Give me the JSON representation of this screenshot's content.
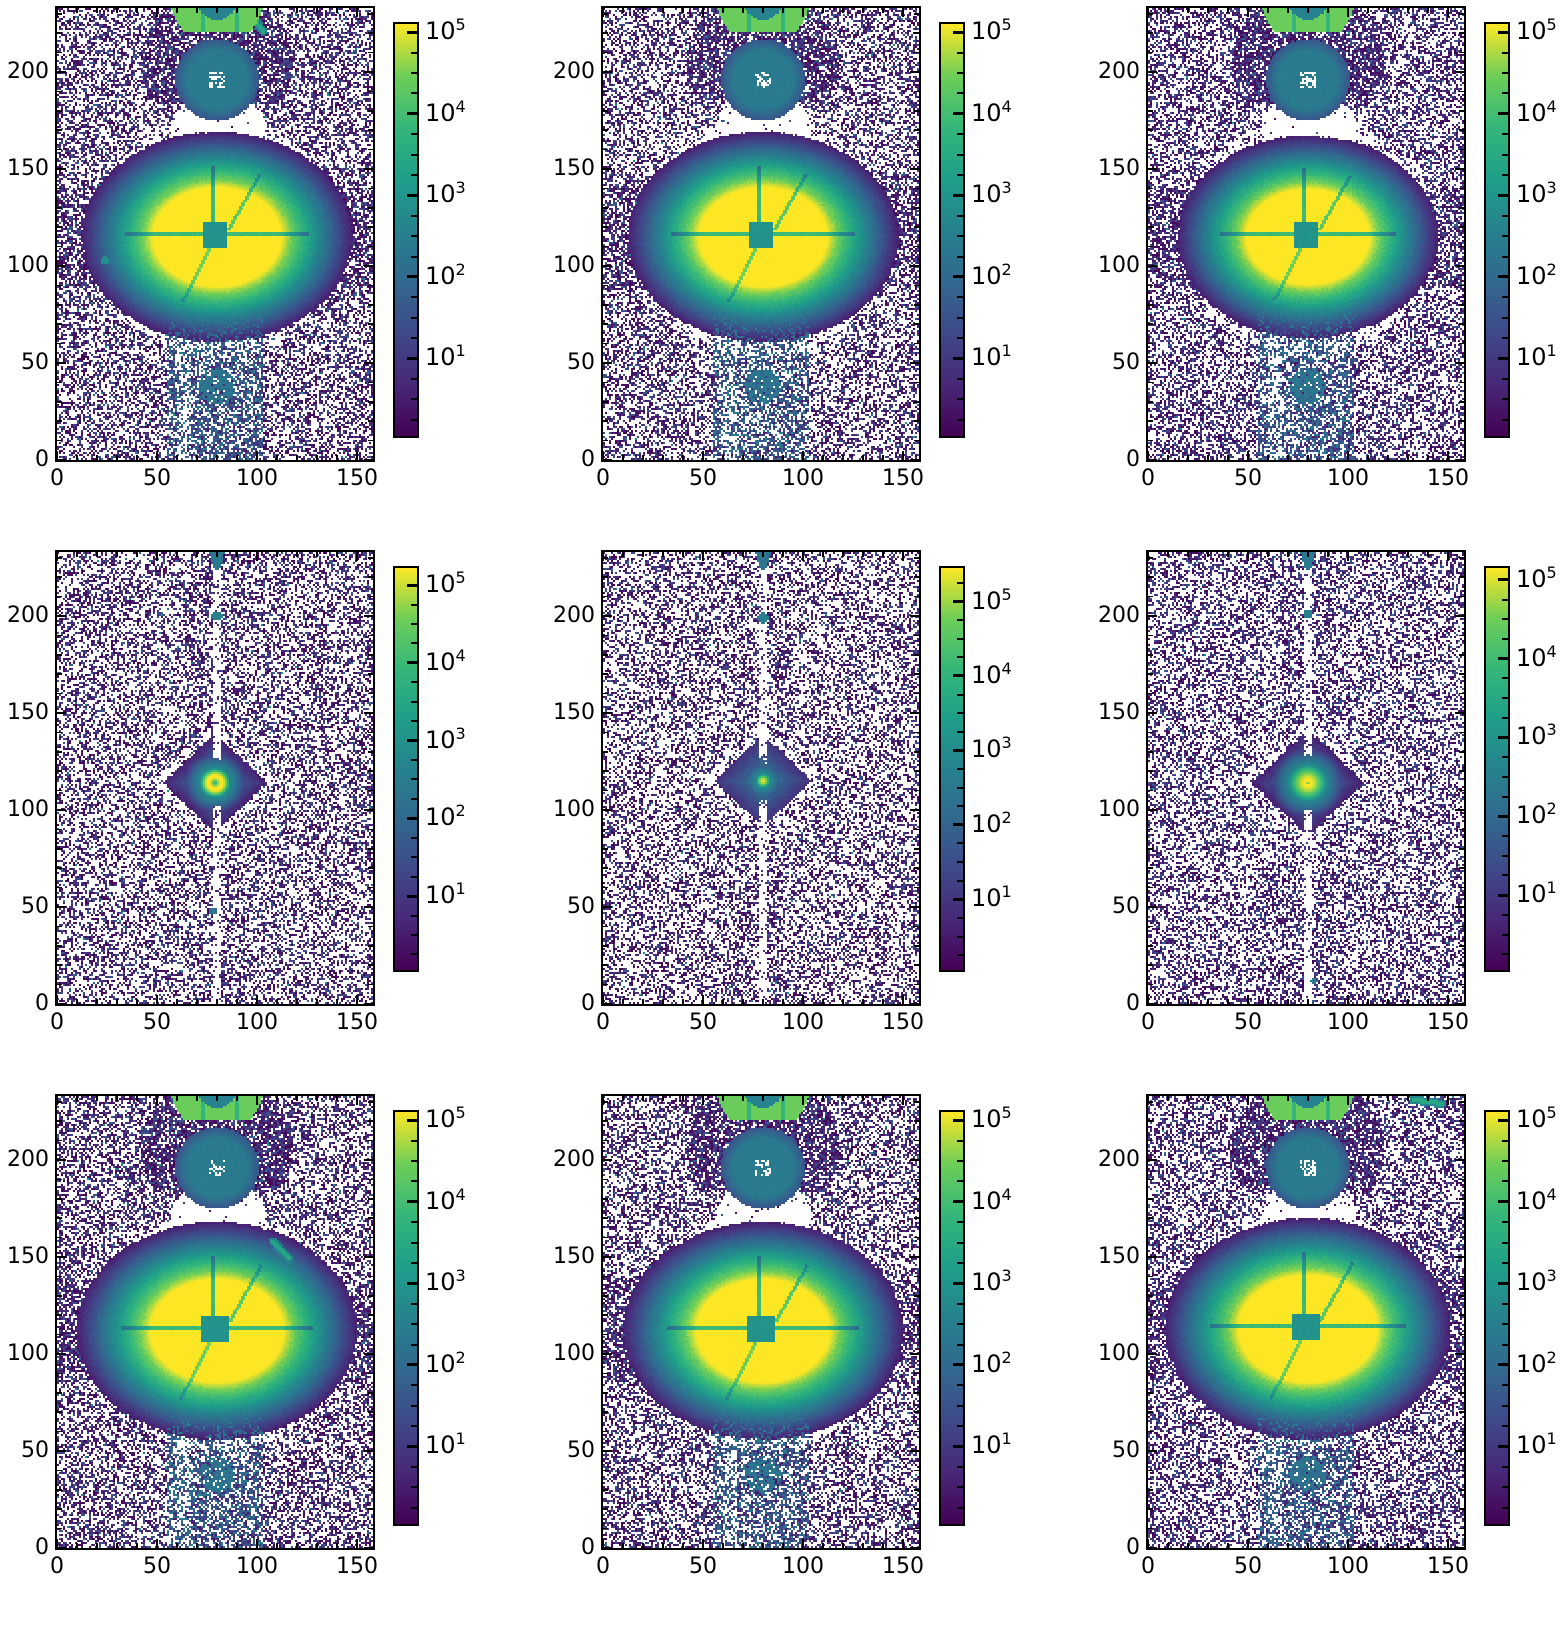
{
  "figure": {
    "background": "#ffffff",
    "description": "3x3 grid of log-scaled detector count heatmaps (viridis colormap), each with its own logarithmic colorbar from 10^1 to 10^5"
  },
  "colors": {
    "background": "#ffffff",
    "axis": "#000000",
    "viridis_stops": [
      "#440154",
      "#482878",
      "#3e4989",
      "#31688e",
      "#26828e",
      "#1f9e89",
      "#35b779",
      "#6ece58",
      "#fde725"
    ]
  },
  "chart_data": {
    "type": "heatmap",
    "grid": "3x3",
    "colormap": "viridis",
    "scale": "log",
    "title": "",
    "xlabel": "",
    "ylabel": "",
    "x_ticks": [
      0,
      50,
      100,
      150
    ],
    "y_ticks": [
      0,
      50,
      100,
      150,
      200
    ],
    "x_range": [
      0,
      158
    ],
    "y_range": [
      0,
      233
    ],
    "minor_tick_step": 10,
    "colorbar": {
      "base": "10",
      "tick_exponents": [
        5,
        4,
        3,
        2,
        1
      ],
      "tick_labels": [
        "10⁵",
        "10⁴",
        "10³",
        "10²",
        "10¹"
      ],
      "range_log10": [
        0.05,
        5.1
      ],
      "minor_fractions": [
        0.25,
        0.5,
        0.75
      ]
    },
    "panels": [
      {
        "id": "r1c1",
        "row": 0,
        "col": 0,
        "seed": 11,
        "density": 0.46,
        "cbar_top_exp": 5.1,
        "description": "saturated annular source with square readout hole and segment seams, diffuse elliptical halo, secondary ring at top edge, masked bow-tie region, vertical smudge below, diagonal streak top-right, small green hotspot left",
        "main": {
          "type": "big_ring",
          "cx": 80,
          "cy": 115,
          "hole": 6.5,
          "r_out": 25,
          "halo_decay": 6.2
        },
        "top_structure": true,
        "bottom_smudge": true,
        "stripe": false,
        "streaks": [
          [
            95,
            232,
            103,
            221,
            2600
          ]
        ],
        "hotspots": [
          [
            24,
            103,
            2.2,
            700
          ]
        ],
        "blobs": []
      },
      {
        "id": "r1c2",
        "row": 0,
        "col": 1,
        "seed": 12,
        "density": 0.44,
        "cbar_top_exp": 5.1,
        "description": "saturated annular source with square readout hole, diffuse halo, top secondary ring, masked bow-tie, vertical smudge below",
        "main": {
          "type": "big_ring",
          "cx": 80,
          "cy": 115,
          "hole": 6.5,
          "r_out": 25,
          "halo_decay": 6.2
        },
        "top_structure": true,
        "bottom_smudge": true,
        "stripe": false,
        "streaks": [],
        "hotspots": [],
        "blobs": []
      },
      {
        "id": "r1c3",
        "row": 0,
        "col": 2,
        "seed": 13,
        "density": 0.47,
        "cbar_top_exp": 5.1,
        "description": "saturated annular source with square readout hole, diffuse halo, top secondary ring, masked bow-tie, weak smudge below",
        "main": {
          "type": "big_ring",
          "cx": 80,
          "cy": 115,
          "hole": 6.5,
          "r_out": 24,
          "halo_decay": 6.0
        },
        "top_structure": true,
        "bottom_smudge": true,
        "stripe": false,
        "streaks": [],
        "hotspots": [],
        "blobs": []
      },
      {
        "id": "r2c1",
        "row": 1,
        "col": 0,
        "seed": 21,
        "density": 0.42,
        "cbar_top_exp": 5.22,
        "description": "compact ring-like point source with diamond-shaped halo, masked vertical column with small blobs, uniform speckle background",
        "main": {
          "type": "small_ring",
          "cx": 79,
          "cy": 114
        },
        "top_structure": false,
        "bottom_smudge": false,
        "stripe": true,
        "streaks": [],
        "hotspots": [],
        "blobs": [
          [
            80,
            200,
            2.6,
            320
          ],
          [
            78,
            48,
            1.9,
            220
          ]
        ]
      },
      {
        "id": "r2c2",
        "row": 1,
        "col": 1,
        "seed": 22,
        "density": 0.4,
        "cbar_top_exp": 5.45,
        "description": "tiny saturated point source with diamond halo, masked vertical column with blob near top, sparse speckle background",
        "main": {
          "type": "point",
          "cx": 80,
          "cy": 115
        },
        "top_structure": false,
        "bottom_smudge": false,
        "stripe": true,
        "streaks": [],
        "hotspots": [],
        "blobs": [
          [
            80,
            199,
            2.9,
            380
          ]
        ]
      },
      {
        "id": "r2c3",
        "row": 1,
        "col": 2,
        "seed": 23,
        "density": 0.43,
        "cbar_top_exp": 5.15,
        "description": "filled saturated blob source with diamond halo, masked vertical column, speckle background",
        "main": {
          "type": "blob",
          "cx": 80,
          "cy": 114
        },
        "top_structure": false,
        "bottom_smudge": false,
        "stripe": true,
        "streaks": [],
        "hotspots": [],
        "blobs": [
          [
            80,
            201,
            2.3,
            300
          ],
          [
            83,
            12,
            1.6,
            200
          ]
        ]
      },
      {
        "id": "r3c1",
        "row": 2,
        "col": 0,
        "seed": 31,
        "density": 0.47,
        "cbar_top_exp": 5.1,
        "description": "larger annular source with square hole, top double ring, masked bow-tie, long vertical smudge, diagonal teal streak mid-right",
        "main": {
          "type": "big_ring",
          "cx": 80,
          "cy": 112,
          "hole": 7,
          "r_out": 26,
          "halo_decay": 6.4
        },
        "top_structure": true,
        "bottom_smudge": true,
        "stripe": false,
        "streaks": [
          [
            108,
            158,
            116,
            149,
            2400
          ]
        ],
        "hotspots": [],
        "blobs": []
      },
      {
        "id": "r3c2",
        "row": 2,
        "col": 1,
        "seed": 32,
        "density": 0.45,
        "cbar_top_exp": 5.1,
        "description": "larger annular source with square hole, top double ring, masked bow-tie, vertical smudge below",
        "main": {
          "type": "big_ring",
          "cx": 80,
          "cy": 112,
          "hole": 7,
          "r_out": 26,
          "halo_decay": 6.4
        },
        "top_structure": true,
        "bottom_smudge": true,
        "stripe": false,
        "streaks": [],
        "hotspots": [],
        "blobs": []
      },
      {
        "id": "r3c3",
        "row": 2,
        "col": 2,
        "seed": 33,
        "density": 0.47,
        "cbar_top_exp": 5.1,
        "description": "largest annular source with square hole, top double ring, masked bow-tie, smudge below, teal streak in top-right corner",
        "main": {
          "type": "big_ring",
          "cx": 80,
          "cy": 113,
          "hole": 7,
          "r_out": 27,
          "halo_decay": 6.4
        },
        "top_structure": true,
        "bottom_smudge": true,
        "stripe": false,
        "streaks": [
          [
            133,
            231,
            147,
            229,
            2800
          ]
        ],
        "hotspots": [],
        "blobs": []
      }
    ]
  }
}
